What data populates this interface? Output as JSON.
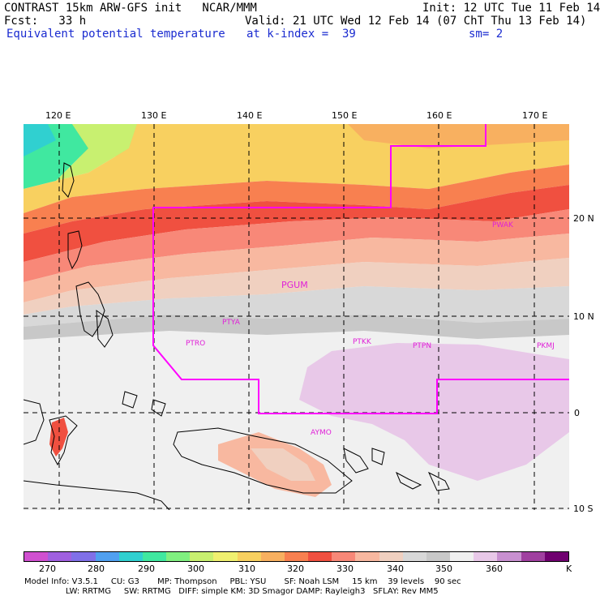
{
  "header": {
    "line1_left": "CONTRAST 15km ARW-GFS init   NCAR/MMM",
    "line1_right": "Init: 12 UTC Tue 11 Feb 14",
    "line2_left": "Fcst:   33 h",
    "line2_right": "Valid: 21 UTC Wed 12 Feb 14 (07 ChT Thu 13 Feb 14)",
    "line3_left": "Equivalent potential temperature",
    "line3_mid": "at k-index =  39",
    "line3_right": "sm= 2"
  },
  "axes": {
    "lon_ticks": [
      "120 E",
      "130 E",
      "140 E",
      "150 E",
      "160 E",
      "170 E"
    ],
    "lat_ticks": [
      "20 N",
      "10 N",
      "0",
      "10 S"
    ]
  },
  "stations": [
    "PGUM",
    "PTYA",
    "PTRO",
    "PTKK",
    "PTPN",
    "PKMJ",
    "PWAK",
    "AYMO"
  ],
  "colorbar": {
    "colors": [
      "#d050d0",
      "#a060e0",
      "#8070e8",
      "#50a0f0",
      "#30d0d0",
      "#40e8a0",
      "#80f080",
      "#c8f070",
      "#f0f070",
      "#f8d060",
      "#f8b060",
      "#f88050",
      "#f05040",
      "#f88878",
      "#f8b8a0",
      "#f0d0c0",
      "#d8d8d8",
      "#c8c8c8",
      "#f0f0f0",
      "#e8c8e8",
      "#c890d0",
      "#a040a0",
      "#700070"
    ],
    "labels": [
      "270",
      "280",
      "290",
      "300",
      "310",
      "320",
      "330",
      "340",
      "350",
      "360",
      "K"
    ]
  },
  "footer": {
    "line1": "Model Info: V3.5.1     CU: G3       MP: Thompson     PBL: YSU       SF: Noah LSM     15 km    39 levels    90 sec",
    "line2": "                LW: RRTMG     SW: RRTMG   DIFF: simple KM: 3D Smagor DAMP: Rayleigh3   SFLAY: Rev MM5"
  }
}
